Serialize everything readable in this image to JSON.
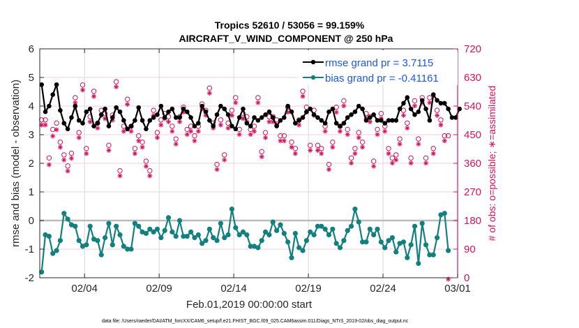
{
  "chart_data": {
    "type": "line",
    "title": [
      "Tropics 52610 / 53056 = 99.159%",
      "AIRCRAFT_V_WIND_COMPONENT @ 250 hPa"
    ],
    "xlabel": "Feb.01,2019 00:00:00 start",
    "ylabel": "rmse and bias (model - observation)",
    "ylabel_right": "# of obs: o=possible; ∗=assimilated",
    "footnote": "data file: /Users/raeder/DAI/ATM_forcXX/CAM6_setup/f.e21.FHIST_BGC.f09_025.CAM6assim.011/Diags_NTrS_2019-02/obs_diag_output.nc",
    "x_unit": "days since Feb.01,2019",
    "xlim": [
      0,
      28
    ],
    "x_ticks": [
      {
        "value": 3,
        "label": "02/04"
      },
      {
        "value": 8,
        "label": "02/09"
      },
      {
        "value": 13,
        "label": "02/14"
      },
      {
        "value": 18,
        "label": "02/19"
      },
      {
        "value": 23,
        "label": "02/24"
      },
      {
        "value": 28,
        "label": "03/01"
      }
    ],
    "ylim": [
      -2,
      6
    ],
    "y_ticks": [
      -2,
      -1,
      0,
      1,
      2,
      3,
      4,
      5,
      6
    ],
    "ylim_right": [
      0,
      720
    ],
    "y_ticks_right": [
      0,
      90,
      180,
      270,
      360,
      450,
      540,
      630,
      720
    ],
    "grid": true,
    "zero_line": true,
    "legend": {
      "placement": "top-right",
      "entries": [
        {
          "label": "rmse grand pr = 3.7115",
          "color": "#000000"
        },
        {
          "label": "bias grand pr = -0.41161",
          "color": "#11807f"
        }
      ]
    },
    "colors": {
      "rmse": "#000000",
      "bias": "#11807f",
      "obs": "#d6115d",
      "legend_text": "#1a56f0",
      "zero_line": "#bbbbbb",
      "grid": "#d8d8d8",
      "right_grid": "#f2d0dc"
    },
    "time_step_days": 0.25,
    "x_start": 0.125,
    "series": [
      {
        "name": "rmse",
        "values": [
          4.75,
          3.8,
          4.0,
          4.4,
          4.75,
          3.85,
          3.4,
          3.2,
          3.6,
          4.0,
          3.5,
          3.4,
          3.8,
          3.9,
          3.3,
          3.4,
          3.7,
          3.9,
          3.3,
          3.6,
          3.95,
          3.8,
          3.5,
          3.2,
          3.3,
          3.5,
          3.95,
          3.5,
          3.2,
          3.5,
          3.6,
          3.7,
          4.0,
          3.6,
          3.8,
          3.9,
          3.6,
          3.6,
          3.9,
          3.8,
          3.6,
          3.3,
          3.4,
          4.0,
          3.8,
          3.5,
          3.3,
          3.7,
          4.0,
          3.9,
          3.7,
          3.3,
          3.2,
          3.6,
          3.9,
          3.4,
          3.3,
          3.6,
          3.5,
          3.6,
          3.7,
          3.8,
          3.6,
          3.3,
          3.5,
          3.6,
          4.0,
          3.8,
          3.4,
          3.5,
          3.6,
          3.8,
          3.9,
          3.7,
          3.6,
          3.5,
          3.4,
          3.8,
          3.9,
          3.4,
          3.3,
          3.4,
          3.6,
          3.7,
          3.8,
          4.0,
          3.9,
          3.5,
          3.6,
          3.7,
          3.5,
          3.5,
          3.4,
          3.5,
          3.5,
          3.5,
          3.9,
          4.1,
          4.3,
          3.9,
          3.7,
          3.8,
          4.2,
          3.9,
          3.5,
          4.4,
          4.2,
          4.1,
          4.1,
          3.9,
          3.6,
          3.6,
          3.9
        ],
        "color": "#000000",
        "axis": "left"
      },
      {
        "name": "bias",
        "values": [
          -1.8,
          -0.5,
          -0.55,
          -1.15,
          -1.05,
          -0.7,
          0.25,
          0.05,
          -0.15,
          -0.2,
          -0.7,
          -0.9,
          -0.85,
          -0.2,
          -0.65,
          -0.7,
          -1.2,
          -0.6,
          -0.1,
          -0.85,
          -0.2,
          -0.5,
          -0.9,
          -1.0,
          -1.0,
          -0.1,
          -0.2,
          -0.4,
          -0.45,
          -0.3,
          -0.4,
          -0.3,
          -0.6,
          -0.35,
          0.1,
          -0.4,
          -0.55,
          0.0,
          -0.55,
          -0.55,
          -0.4,
          -0.6,
          -0.5,
          -0.8,
          -0.7,
          -0.3,
          -0.6,
          -0.7,
          -0.1,
          -0.6,
          -0.5,
          0.4,
          -0.25,
          -0.5,
          -0.4,
          -0.5,
          -0.9,
          -0.9,
          -0.95,
          -0.7,
          -0.4,
          -0.5,
          -0.05,
          -0.35,
          -0.15,
          -0.45,
          -0.75,
          -1.3,
          -0.45,
          -0.95,
          -1.05,
          -0.7,
          -0.4,
          -0.5,
          -0.2,
          -0.2,
          -0.3,
          -0.5,
          -0.3,
          -0.8,
          -0.95,
          -0.7,
          -0.35,
          -0.2,
          0.4,
          -0.05,
          -0.75,
          -0.75,
          -0.3,
          -0.5,
          -0.3,
          -0.75,
          -0.95,
          -0.7,
          -0.6,
          -1.1,
          -0.8,
          -0.75,
          -1.3,
          -0.85,
          -0.2,
          -1.5,
          -0.1,
          -0.85,
          -1.2,
          -1.2,
          -0.6,
          0.2,
          0.25,
          -1.05
        ],
        "color": "#11807f",
        "axis": "left"
      },
      {
        "name": "obs_possible",
        "marker": "o",
        "values": [
          490,
          490,
          370,
          460,
          480,
          420,
          380,
          345,
          385,
          560,
          450,
          600,
          400,
          500,
          580,
          480,
          520,
          510,
          410,
          505,
          610,
          330,
          470,
          555,
          470,
          400,
          440,
          420,
          360,
          330,
          520,
          450,
          490,
          510,
          500,
          470,
          430,
          500,
          530,
          460,
          470,
          440,
          470,
          540,
          520,
          590,
          480,
          350,
          490,
          380,
          480,
          520,
          560,
          460,
          510,
          500,
          460,
          470,
          560,
          390,
          450,
          500,
          500,
          490,
          440,
          440,
          530,
          420,
          400,
          490,
          580,
          530,
          410,
          520,
          410,
          400,
          470,
          350,
          420,
          530,
          470,
          550,
          460,
          370,
          400,
          450,
          420,
          510,
          500,
          360,
          460,
          510,
          470,
          400,
          370,
          380,
          430,
          520,
          480,
          370,
          550,
          430,
          560,
          370,
          560,
          400,
          520,
          490,
          440,
          440
        ],
        "color": "#d6115d",
        "axis": "right"
      },
      {
        "name": "obs_assimilated",
        "marker": "*",
        "values": [
          485,
          485,
          360,
          450,
          470,
          415,
          375,
          340,
          380,
          555,
          445,
          595,
          395,
          495,
          575,
          475,
          515,
          505,
          405,
          500,
          605,
          325,
          465,
          550,
          465,
          395,
          435,
          415,
          355,
          325,
          515,
          445,
          485,
          505,
          495,
          465,
          425,
          495,
          525,
          455,
          465,
          435,
          465,
          535,
          515,
          585,
          475,
          345,
          485,
          375,
          475,
          515,
          555,
          455,
          505,
          495,
          455,
          465,
          555,
          385,
          445,
          495,
          495,
          485,
          435,
          435,
          525,
          415,
          395,
          485,
          575,
          525,
          405,
          515,
          405,
          395,
          465,
          345,
          415,
          525,
          465,
          545,
          455,
          365,
          395,
          445,
          415,
          505,
          495,
          355,
          455,
          505,
          465,
          395,
          365,
          375,
          425,
          515,
          475,
          365,
          545,
          425,
          555,
          365,
          555,
          395,
          515,
          485,
          435,
          0
        ],
        "color": "#d6115d",
        "axis": "right"
      }
    ]
  }
}
